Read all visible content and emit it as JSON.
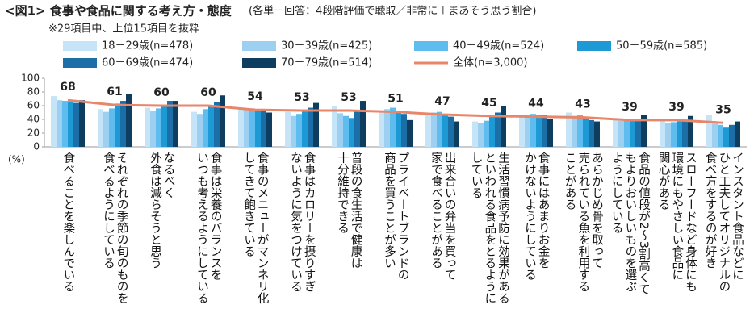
{
  "chart_data": {
    "type": "bar",
    "title": "<図1> 食事や食品に関する考え方・態度",
    "subtitle": "(各単一回答：4段階評価で聴取／非常に＋まあそう思う割合)",
    "note": "※29項目中、上位15項目を抜粋",
    "y_unit": "(%)",
    "categories": [
      "食べることを楽しんでいる",
      "それぞれの季節の旬のものを\n食べるようにしている",
      "なるべく\n外食は減らそうと思う",
      "食事は栄養のバランスを\nいつも考えるようにしている",
      "食事のメニューがマンネリ化\nしてきて飽きている",
      "食事はカロリーを摂りすぎ\nないように気をつけている",
      "普段の食生活で健康は\n十分維持できる",
      "プライベートブランドの\n商品を買うことが多い",
      "出来合いの弁当を買って\n家で食べることがある",
      "生活習慣病予防に効果がある\nといわれる食品をとるように\nしている",
      "食事にはあまりお金を\nかけないようにしている",
      "あらかじめ骨を取って\n売られている魚を利用する\nことがある",
      "食品の値段が2～3割高くて\nもよりおいしいものを選ぶ\nようにしている",
      "スローフードなど身体にも\n環境にもやさしい食品に\n関心がある",
      "インスタント食品などに\nひと工夫してオリジナルの\n食べ方をするのが好き"
    ],
    "series": [
      {
        "name": "18－29歳(n=478)",
        "color": "#c6e4f7",
        "values": [
          74,
          55,
          57,
          51,
          56,
          51,
          60,
          53,
          49,
          37,
          43,
          50,
          40,
          38,
          46
        ]
      },
      {
        "name": "30－39歳(n=425)",
        "color": "#9dd0f0",
        "values": [
          68,
          51,
          53,
          48,
          56,
          45,
          49,
          55,
          50,
          35,
          43,
          45,
          38,
          35,
          34
        ]
      },
      {
        "name": "40－49歳(n=524)",
        "color": "#5ebdee",
        "values": [
          67,
          56,
          56,
          55,
          56,
          48,
          45,
          57,
          51,
          38,
          48,
          46,
          38,
          36,
          32
        ]
      },
      {
        "name": "50－59歳(n=585)",
        "color": "#1d9ad6",
        "values": [
          66,
          63,
          59,
          59,
          55,
          53,
          42,
          50,
          48,
          44,
          47,
          41,
          38,
          37,
          28
        ]
      },
      {
        "name": "60－69歳(n=474)",
        "color": "#1b6ea6",
        "values": [
          64,
          67,
          67,
          65,
          54,
          57,
          54,
          48,
          44,
          50,
          47,
          39,
          38,
          37,
          32
        ]
      },
      {
        "name": "70－79歳(n=514)",
        "color": "#0d3e60",
        "values": [
          68,
          77,
          67,
          75,
          50,
          64,
          67,
          39,
          37,
          59,
          40,
          37,
          46,
          45,
          37
        ]
      },
      {
        "name": "全体(n=3,000)",
        "color": "#e8866a",
        "type": "line",
        "values": [
          68,
          61,
          60,
          60,
          54,
          53,
          53,
          51,
          47,
          45,
          44,
          43,
          39,
          39,
          35
        ]
      }
    ],
    "ylim": [
      0,
      100
    ],
    "yticks": [
      0,
      20,
      40,
      60,
      80,
      100
    ],
    "grid": false
  }
}
